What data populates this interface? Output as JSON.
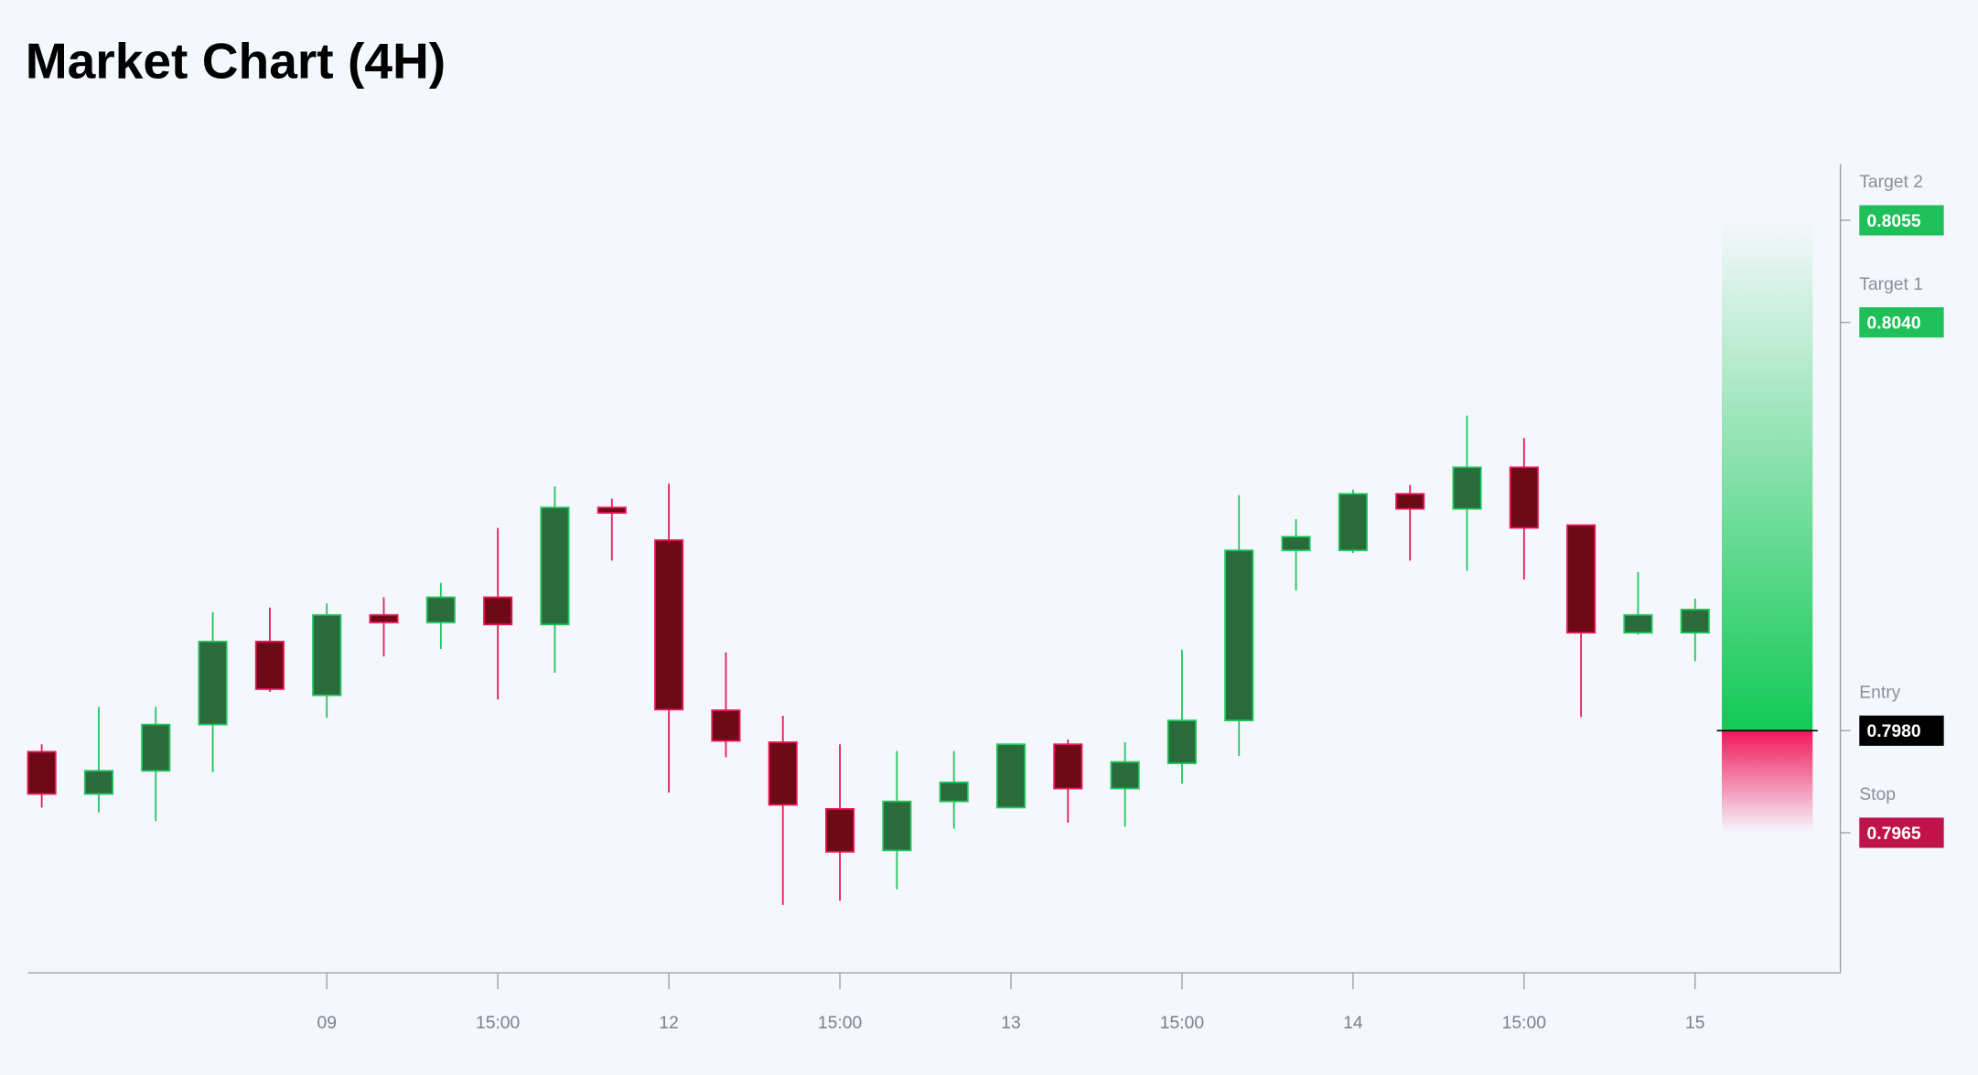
{
  "chart_data": {
    "type": "candlestick",
    "title": "Market Chart (4H)",
    "categories": [
      null,
      null,
      null,
      null,
      null,
      "09",
      null,
      null,
      "15:00",
      null,
      null,
      "12",
      null,
      null,
      "15:00",
      null,
      null,
      "13",
      null,
      null,
      "15:00",
      null,
      null,
      "14",
      null,
      null,
      "15:00",
      null,
      null,
      "15"
    ],
    "open": [
      0.79769,
      0.79707,
      0.79741,
      0.79809,
      0.79931,
      0.79852,
      0.7997,
      0.79959,
      0.79996,
      0.79956,
      0.80128,
      0.8008,
      0.7983,
      0.79783,
      0.79685,
      0.79624,
      0.79696,
      0.79687,
      0.7978,
      0.79715,
      0.79752,
      0.79815,
      0.80065,
      0.80065,
      0.80148,
      0.80126,
      0.80187,
      0.80102,
      0.79944,
      0.79944
    ],
    "high": [
      0.7978,
      0.79835,
      0.79835,
      0.79974,
      0.79981,
      0.79987,
      0.79996,
      0.80017,
      0.80098,
      0.80159,
      0.80141,
      0.80163,
      0.79915,
      0.79822,
      0.7978,
      0.7977,
      0.7977,
      0.7978,
      0.79787,
      0.79783,
      0.79919,
      0.80146,
      0.80111,
      0.80154,
      0.80161,
      0.80263,
      0.8023,
      0.80102,
      0.80033,
      0.79994
    ],
    "low": [
      0.79687,
      0.7968,
      0.79667,
      0.79739,
      0.79857,
      0.79819,
      0.79909,
      0.7992,
      0.79846,
      0.79885,
      0.8005,
      0.79709,
      0.79761,
      0.79544,
      0.7955,
      0.79567,
      0.79656,
      0.79687,
      0.79665,
      0.79659,
      0.79722,
      0.79763,
      0.80006,
      0.80061,
      0.8005,
      0.80035,
      0.80022,
      0.7982,
      0.79941,
      0.79902
    ],
    "close": [
      0.79707,
      0.79741,
      0.79809,
      0.79931,
      0.79861,
      0.7997,
      0.79959,
      0.79996,
      0.79956,
      0.80128,
      0.8012,
      0.79831,
      0.79785,
      0.79691,
      0.79622,
      0.79696,
      0.79724,
      0.7978,
      0.79715,
      0.79754,
      0.79815,
      0.80065,
      0.80085,
      0.80148,
      0.80126,
      0.80187,
      0.80098,
      0.79944,
      0.7997,
      0.79978
    ],
    "up_color": "#2a6b3c",
    "up_border": "#22c55e",
    "down_color": "#6e0a16",
    "down_border": "#e8195a",
    "ylim": [
      0.79444,
      0.80633
    ],
    "levels": [
      {
        "name": "Target 2",
        "value": 0.8055,
        "label": "0.8055",
        "color": "#1fbf5a"
      },
      {
        "name": "Target 1",
        "value": 0.804,
        "label": "0.8040",
        "color": "#1fbf5a"
      },
      {
        "name": "Entry",
        "value": 0.798,
        "label": "0.7980",
        "color": "#000000"
      },
      {
        "name": "Stop",
        "value": 0.7965,
        "label": "0.7965",
        "color": "#c0134a"
      }
    ]
  }
}
